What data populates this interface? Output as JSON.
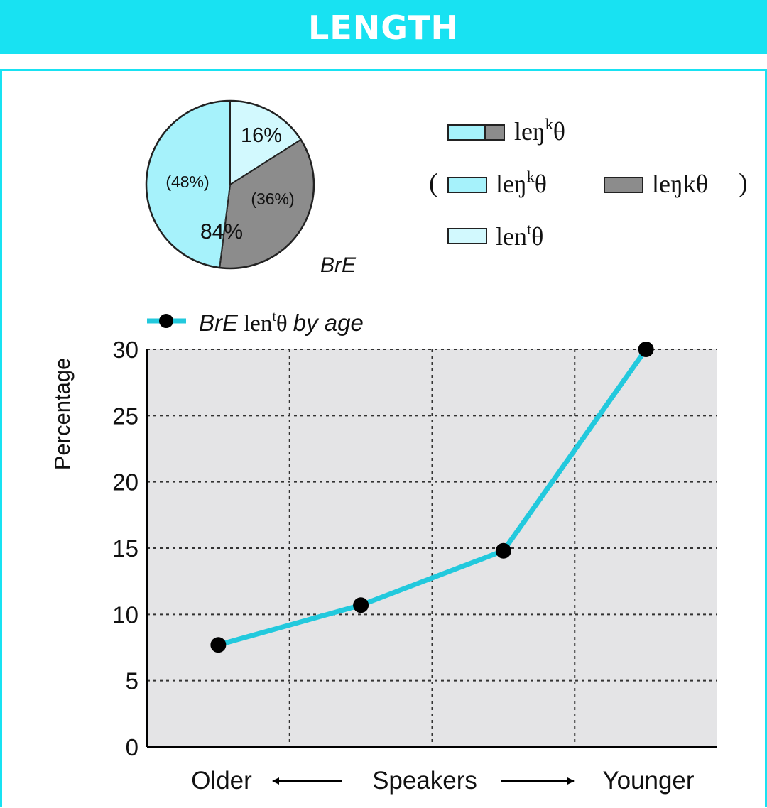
{
  "header": {
    "title": "LENGTH"
  },
  "colors": {
    "accent": "#18e2f2",
    "line": "#22c9dd",
    "cyan": "#a6f2fb",
    "light_cyan": "#d2f9fe",
    "grey": "#8c8c8c",
    "plot_bg": "#e4e4e6"
  },
  "chart_data": [
    {
      "type": "pie",
      "label": "BrE",
      "slices": [
        {
          "label": "16%",
          "value": 16,
          "color": "#d2f9fe"
        },
        {
          "label": "(36%)",
          "value": 36,
          "color": "#8c8c8c"
        },
        {
          "label": "(48%)",
          "value": 48,
          "color": "#a6f2fb"
        }
      ],
      "combined_label": "84%",
      "legend": {
        "combined": {
          "base": "leŋ",
          "sup": "k",
          "tail": "θ"
        },
        "paren_open": "(",
        "paren_close": ")",
        "items": [
          {
            "base": "leŋ",
            "sup": "k",
            "tail": "θ"
          },
          {
            "base": "leŋkθ",
            "sup": "",
            "tail": ""
          },
          {
            "base": "len",
            "sup": "t",
            "tail": "θ"
          }
        ]
      }
    },
    {
      "type": "line",
      "legend": {
        "prefix": "BrE",
        "base": "len",
        "sup": "t",
        "tail": "θ",
        "suffix": "by age"
      },
      "ylabel": "Percentage",
      "ylim": [
        0,
        30
      ],
      "yticks": [
        "0",
        "5",
        "10",
        "15",
        "20",
        "25",
        "30"
      ],
      "x": [
        1,
        2,
        3,
        4
      ],
      "xlim": [
        0.5,
        4.5
      ],
      "values": [
        7.7,
        10.7,
        14.8,
        30
      ],
      "xaxis": {
        "left": "Older",
        "center": "Speakers",
        "right": "Younger"
      }
    }
  ]
}
